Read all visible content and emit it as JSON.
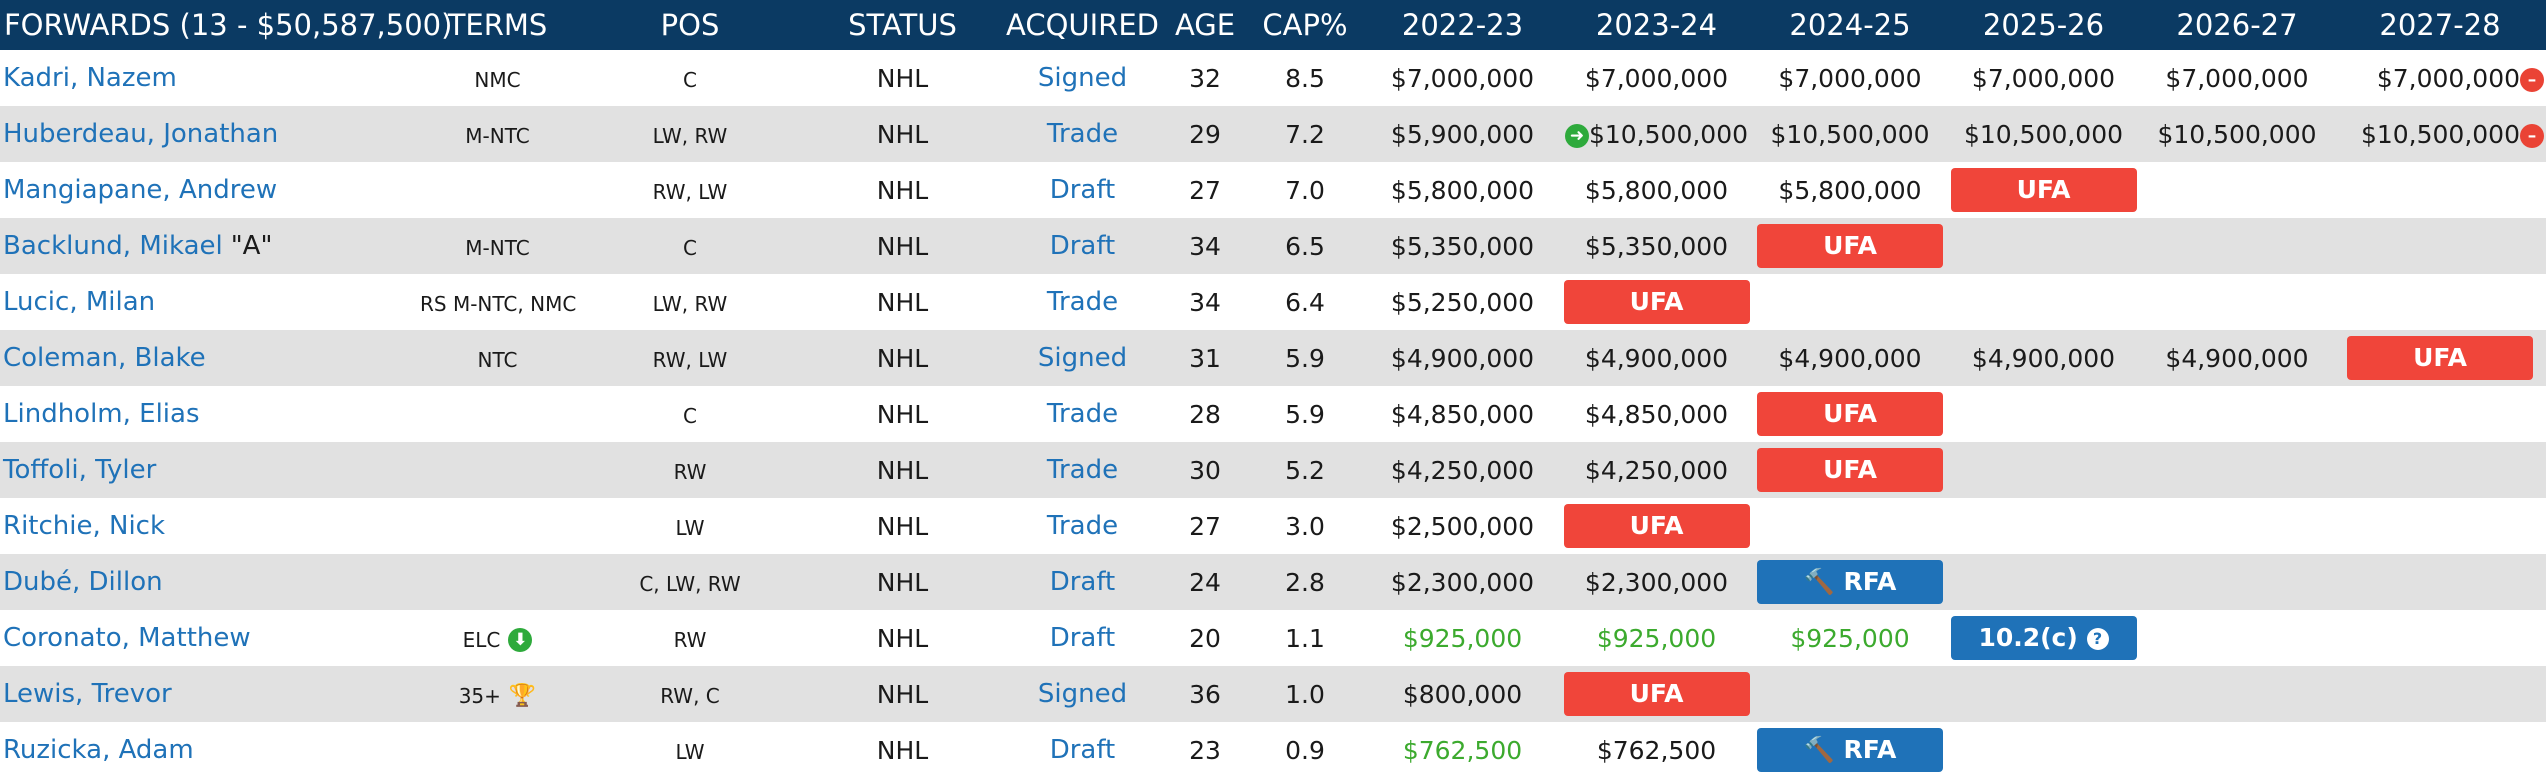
{
  "header": {
    "group": "FORWARDS (13 - $50,587,500)",
    "terms": "TERMS",
    "pos": "POS",
    "status": "STATUS",
    "acquired": "ACQUIRED",
    "age": "AGE",
    "cap": "CAP%",
    "y2223": "2022-23",
    "y2324": "2023-24",
    "y2425": "2024-25",
    "y2526": "2025-26",
    "y2627": "2026-27",
    "y2728": "2027-28"
  },
  "players": [
    {
      "name": "Kadri, Nazem",
      "terms": "NMC",
      "pos": "C",
      "status": "NHL",
      "acquired": "Signed",
      "age": "32",
      "cap": "8.5",
      "y2223": "$7,000,000",
      "y2324": "$7,000,000",
      "y2425": "$7,000,000",
      "y2526": "$7,000,000",
      "y2627": "$7,000,000",
      "y2728": "$7,000,000"
    },
    {
      "name": "Huberdeau, Jonathan",
      "terms": "M-NTC",
      "pos": "LW, RW",
      "status": "NHL",
      "acquired": "Trade",
      "age": "29",
      "cap": "7.2",
      "y2223": "$5,900,000",
      "y2324": "$10,500,000",
      "y2425": "$10,500,000",
      "y2526": "$10,500,000",
      "y2627": "$10,500,000",
      "y2728": "$10,500,000"
    },
    {
      "name": "Mangiapane, Andrew",
      "terms": "",
      "pos": "RW, LW",
      "status": "NHL",
      "acquired": "Draft",
      "age": "27",
      "cap": "7.0",
      "y2223": "$5,800,000",
      "y2324": "$5,800,000",
      "y2425": "$5,800,000",
      "y2526": "UFA"
    },
    {
      "name": "Backlund, Mikael",
      "name_suffix": "\"A\"",
      "terms": "M-NTC",
      "pos": "C",
      "status": "NHL",
      "acquired": "Draft",
      "age": "34",
      "cap": "6.5",
      "y2223": "$5,350,000",
      "y2324": "$5,350,000",
      "y2425": "UFA"
    },
    {
      "name": "Lucic, Milan",
      "terms": "RS M-NTC, NMC",
      "pos": "LW, RW",
      "status": "NHL",
      "acquired": "Trade",
      "age": "34",
      "cap": "6.4",
      "y2223": "$5,250,000",
      "y2324": "UFA"
    },
    {
      "name": "Coleman, Blake",
      "terms": "NTC",
      "pos": "RW, LW",
      "status": "NHL",
      "acquired": "Signed",
      "age": "31",
      "cap": "5.9",
      "y2223": "$4,900,000",
      "y2324": "$4,900,000",
      "y2425": "$4,900,000",
      "y2526": "$4,900,000",
      "y2627": "$4,900,000",
      "y2728": "UFA"
    },
    {
      "name": "Lindholm, Elias",
      "terms": "",
      "pos": "C",
      "status": "NHL",
      "acquired": "Trade",
      "age": "28",
      "cap": "5.9",
      "y2223": "$4,850,000",
      "y2324": "$4,850,000",
      "y2425": "UFA"
    },
    {
      "name": "Toffoli, Tyler",
      "terms": "",
      "pos": "RW",
      "status": "NHL",
      "acquired": "Trade",
      "age": "30",
      "cap": "5.2",
      "y2223": "$4,250,000",
      "y2324": "$4,250,000",
      "y2425": "UFA"
    },
    {
      "name": "Ritchie, Nick",
      "terms": "",
      "pos": "LW",
      "status": "NHL",
      "acquired": "Trade",
      "age": "27",
      "cap": "3.0",
      "y2223": "$2,500,000",
      "y2324": "UFA"
    },
    {
      "name": "Dubé, Dillon",
      "terms": "",
      "pos": "C, LW, RW",
      "status": "NHL",
      "acquired": "Draft",
      "age": "24",
      "cap": "2.8",
      "y2223": "$2,300,000",
      "y2324": "$2,300,000",
      "y2425": "RFA"
    },
    {
      "name": "Coronato, Matthew",
      "terms": "ELC",
      "pos": "RW",
      "status": "NHL",
      "acquired": "Draft",
      "age": "20",
      "cap": "1.1",
      "y2223": "$925,000",
      "y2324": "$925,000",
      "y2425": "$925,000",
      "y2526": "10.2(c)"
    },
    {
      "name": "Lewis, Trevor",
      "terms": "35+",
      "pos": "RW, C",
      "status": "NHL",
      "acquired": "Signed",
      "age": "36",
      "cap": "1.0",
      "y2223": "$800,000",
      "y2324": "UFA"
    },
    {
      "name": "Ruzicka, Adam",
      "terms": "",
      "pos": "LW",
      "status": "NHL",
      "acquired": "Draft",
      "age": "23",
      "cap": "0.9",
      "y2223": "$762,500",
      "y2324": "$762,500",
      "y2425": "RFA"
    }
  ],
  "icons": {
    "arrow_right": "arrow-right-icon",
    "no_entry": "no-entry-icon",
    "download_arrow": "download-arrow-icon",
    "trophy": "trophy-icon",
    "gavel": "gavel-icon",
    "question": "question-icon"
  },
  "colors": {
    "header_bg": "#0b3a63",
    "link": "#1f72b8",
    "ufa": "#f0453a",
    "rfa": "#1f72b8",
    "elc_green": "#3caa2e",
    "row_alt": "#e1e1e1"
  }
}
